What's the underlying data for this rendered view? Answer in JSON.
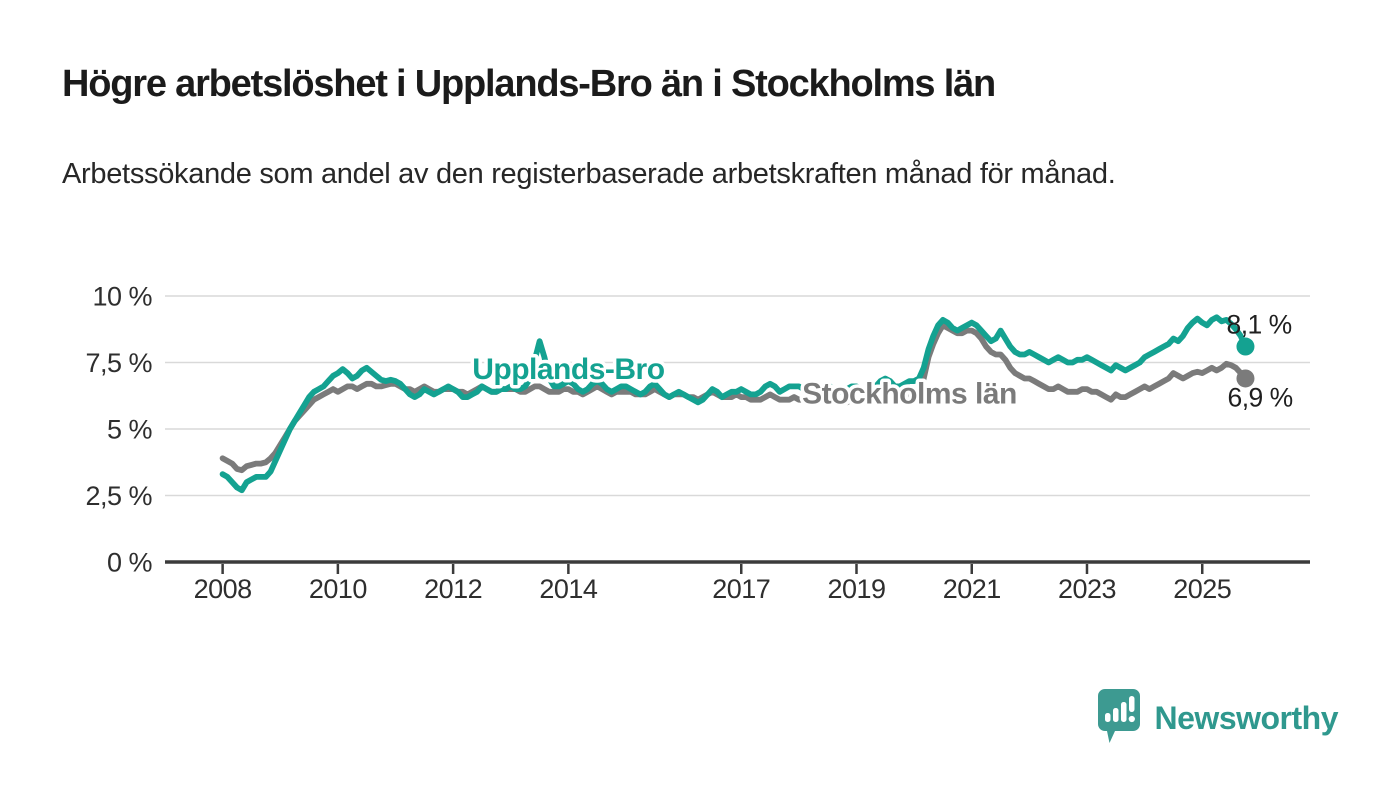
{
  "header": {
    "title": "Högre arbetslöshet i Upplands-Bro än i Stockholms län",
    "subtitle": "Arbetssökande som andel av den registerbaserade arbetskraften månad för månad."
  },
  "chart_data": {
    "type": "line",
    "title": "Högre arbetslöshet i Upplands-Bro än i Stockholms län",
    "subtitle": "Arbetssökande som andel av den registerbaserade arbetskraften månad för månad.",
    "x_unit": "month",
    "x_start": 2008.0,
    "xlim": [
      2007.0,
      2026.87
    ],
    "ylim": [
      0,
      10
    ],
    "grid": true,
    "y_ticks": [
      {
        "value": 0,
        "label": "0 %"
      },
      {
        "value": 2.5,
        "label": "2,5 %"
      },
      {
        "value": 5,
        "label": "5 %"
      },
      {
        "value": 7.5,
        "label": "7,5 %"
      },
      {
        "value": 10,
        "label": "10 %"
      }
    ],
    "x_ticks": [
      {
        "year": 2008,
        "label": "2008"
      },
      {
        "year": 2010,
        "label": "2010"
      },
      {
        "year": 2012,
        "label": "2012"
      },
      {
        "year": 2014,
        "label": "2014"
      },
      {
        "year": 2017,
        "label": "2017"
      },
      {
        "year": 2019,
        "label": "2019"
      },
      {
        "year": 2021,
        "label": "2021"
      },
      {
        "year": 2023,
        "label": "2023"
      },
      {
        "year": 2025,
        "label": "2025"
      }
    ],
    "series": [
      {
        "name": "Stockholms län",
        "color": "#7b7b7b",
        "end_label": "6,9 %",
        "end_label_offset": [
          -18,
          28
        ],
        "values": [
          3.9,
          3.8,
          3.7,
          3.5,
          3.45,
          3.6,
          3.65,
          3.7,
          3.7,
          3.75,
          3.9,
          4.1,
          4.4,
          4.7,
          5.0,
          5.3,
          5.5,
          5.7,
          5.9,
          6.1,
          6.2,
          6.3,
          6.4,
          6.5,
          6.4,
          6.5,
          6.6,
          6.6,
          6.5,
          6.6,
          6.7,
          6.7,
          6.6,
          6.6,
          6.65,
          6.7,
          6.7,
          6.6,
          6.5,
          6.5,
          6.4,
          6.5,
          6.6,
          6.5,
          6.4,
          6.4,
          6.5,
          6.5,
          6.5,
          6.4,
          6.4,
          6.3,
          6.4,
          6.5,
          6.6,
          6.5,
          6.4,
          6.4,
          6.5,
          6.5,
          6.5,
          6.5,
          6.4,
          6.4,
          6.5,
          6.6,
          6.6,
          6.5,
          6.4,
          6.4,
          6.4,
          6.5,
          6.5,
          6.4,
          6.4,
          6.3,
          6.4,
          6.5,
          6.6,
          6.5,
          6.4,
          6.3,
          6.4,
          6.4,
          6.4,
          6.4,
          6.3,
          6.3,
          6.3,
          6.4,
          6.5,
          6.4,
          6.3,
          6.2,
          6.3,
          6.3,
          6.3,
          6.2,
          6.2,
          6.1,
          6.2,
          6.3,
          6.4,
          6.3,
          6.2,
          6.2,
          6.2,
          6.3,
          6.2,
          6.2,
          6.1,
          6.1,
          6.1,
          6.2,
          6.3,
          6.2,
          6.1,
          6.1,
          6.1,
          6.2,
          6.1,
          6.1,
          6.0,
          6.0,
          6.0,
          6.1,
          6.2,
          6.1,
          6.0,
          6.0,
          6.0,
          6.1,
          6.1,
          6.0,
          6.0,
          6.0,
          6.1,
          6.2,
          6.3,
          6.2,
          6.1,
          6.1,
          6.2,
          6.2,
          6.3,
          6.4,
          6.9,
          7.7,
          8.2,
          8.6,
          8.9,
          8.8,
          8.7,
          8.6,
          8.6,
          8.7,
          8.7,
          8.6,
          8.4,
          8.1,
          7.9,
          7.8,
          7.8,
          7.6,
          7.3,
          7.1,
          7.0,
          6.9,
          6.9,
          6.8,
          6.7,
          6.6,
          6.5,
          6.5,
          6.6,
          6.5,
          6.4,
          6.4,
          6.4,
          6.5,
          6.5,
          6.4,
          6.4,
          6.3,
          6.2,
          6.1,
          6.3,
          6.2,
          6.2,
          6.3,
          6.4,
          6.5,
          6.6,
          6.5,
          6.6,
          6.7,
          6.8,
          6.9,
          7.1,
          7.0,
          6.9,
          7.0,
          7.1,
          7.15,
          7.1,
          7.2,
          7.3,
          7.2,
          7.3,
          7.45,
          7.4,
          7.3,
          7.1,
          6.9
        ]
      },
      {
        "name": "Upplands-Bro",
        "color": "#14a291",
        "end_label": "8,1 %",
        "end_label_offset": [
          -19,
          -13
        ],
        "values": [
          3.3,
          3.2,
          3.0,
          2.8,
          2.7,
          3.0,
          3.1,
          3.2,
          3.2,
          3.2,
          3.4,
          3.8,
          4.2,
          4.6,
          5.0,
          5.3,
          5.6,
          5.9,
          6.2,
          6.4,
          6.5,
          6.6,
          6.8,
          7.0,
          7.1,
          7.25,
          7.1,
          6.9,
          7.0,
          7.2,
          7.3,
          7.15,
          7.0,
          6.85,
          6.8,
          6.85,
          6.8,
          6.7,
          6.5,
          6.3,
          6.2,
          6.3,
          6.5,
          6.4,
          6.3,
          6.4,
          6.5,
          6.6,
          6.5,
          6.4,
          6.2,
          6.2,
          6.3,
          6.4,
          6.6,
          6.5,
          6.4,
          6.4,
          6.5,
          6.5,
          6.6,
          6.5,
          6.5,
          6.6,
          6.9,
          7.6,
          8.3,
          7.7,
          6.9,
          6.6,
          6.6,
          6.7,
          6.8,
          6.7,
          6.5,
          6.4,
          6.5,
          6.7,
          6.8,
          6.7,
          6.5,
          6.4,
          6.5,
          6.6,
          6.6,
          6.5,
          6.4,
          6.3,
          6.4,
          6.6,
          6.7,
          6.5,
          6.3,
          6.2,
          6.3,
          6.4,
          6.3,
          6.2,
          6.1,
          6.0,
          6.1,
          6.3,
          6.5,
          6.4,
          6.2,
          6.3,
          6.4,
          6.4,
          6.5,
          6.4,
          6.3,
          6.3,
          6.4,
          6.6,
          6.7,
          6.6,
          6.4,
          6.5,
          6.6,
          6.6,
          6.6,
          6.5,
          6.4,
          6.3,
          6.4,
          6.6,
          6.7,
          6.5,
          6.4,
          6.4,
          6.5,
          6.6,
          6.6,
          6.5,
          6.5,
          6.4,
          6.6,
          6.8,
          6.9,
          6.8,
          6.6,
          6.6,
          6.7,
          6.8,
          6.8,
          6.9,
          7.3,
          8.0,
          8.5,
          8.9,
          9.1,
          9.0,
          8.8,
          8.7,
          8.8,
          8.9,
          9.0,
          8.9,
          8.7,
          8.5,
          8.3,
          8.4,
          8.7,
          8.4,
          8.1,
          7.9,
          7.8,
          7.8,
          7.9,
          7.8,
          7.7,
          7.6,
          7.5,
          7.6,
          7.7,
          7.6,
          7.5,
          7.5,
          7.6,
          7.6,
          7.7,
          7.6,
          7.5,
          7.4,
          7.3,
          7.2,
          7.4,
          7.3,
          7.2,
          7.3,
          7.4,
          7.5,
          7.7,
          7.8,
          7.9,
          8.0,
          8.1,
          8.2,
          8.4,
          8.3,
          8.5,
          8.8,
          9.0,
          9.15,
          9.0,
          8.9,
          9.1,
          9.2,
          9.05,
          9.1,
          8.95,
          8.75,
          8.5,
          8.1
        ]
      }
    ],
    "series_labels": [
      {
        "text": "Upplands-Bro",
        "x": 2014.0,
        "y": 6.88,
        "color": "#14a291"
      },
      {
        "text": "Stockholms län",
        "x": 2019.92,
        "y": 5.95,
        "color": "#7b7b7b"
      }
    ],
    "legend_position": "inline-labels"
  },
  "footer": {
    "brand": "Newsworthy"
  }
}
